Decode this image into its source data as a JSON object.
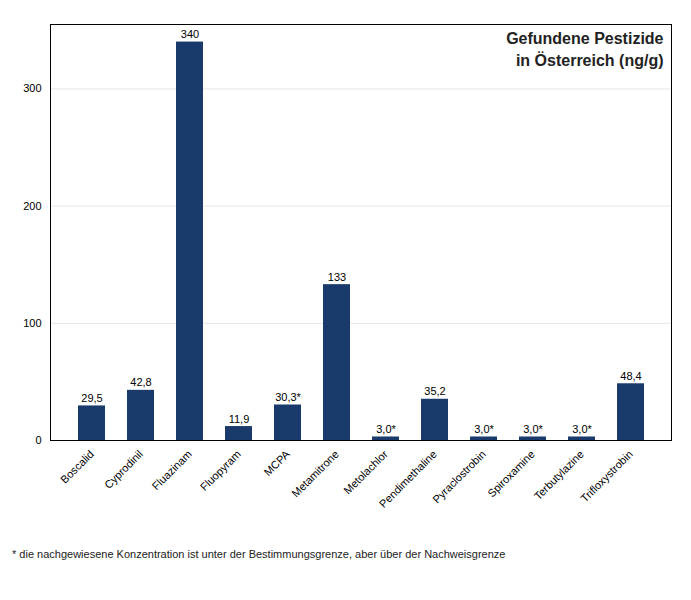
{
  "chart_data": {
    "type": "bar",
    "title": "Gefundene Pestizide",
    "subtitle": "in Österreich (ng/g)",
    "caption": "* die nachgewiesene Konzentration ist unter der Bestimmungsgrenze, aber über der Nachweisgrenze",
    "categories": [
      "Boscalid",
      "Cyprodinil",
      "Fluazinam",
      "Fluopyram",
      "MCPA",
      "Metamitrone",
      "Metolachlor",
      "Pendimethaline",
      "Pyraclostrobin",
      "Spiroxamine",
      "Terbutylazine",
      "Trifloxystrobin"
    ],
    "values": [
      29.5,
      42.8,
      340,
      11.9,
      30.3,
      133,
      3.0,
      35.2,
      3.0,
      3.0,
      3.0,
      48.4
    ],
    "value_labels": [
      "29,5",
      "42,8",
      "340",
      "11,9",
      "30,3*",
      "133",
      "3,0*",
      "35,2",
      "3,0*",
      "3,0*",
      "3,0*",
      "48,4"
    ],
    "data_labels": true,
    "color": "#1a3a6b",
    "ylim": [
      0,
      355
    ],
    "yticks": [
      0,
      100,
      200,
      300
    ],
    "grid": true
  }
}
